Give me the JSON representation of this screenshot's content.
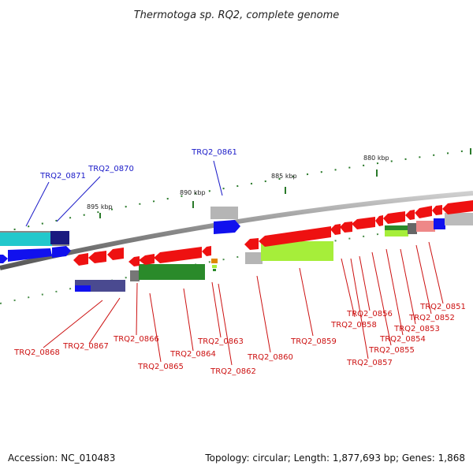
{
  "title": "Thermotoga sp. RQ2, complete genome",
  "footer": {
    "accession": "Accession: NC_010483",
    "summary": "Topology: circular; Length: 1,877,693 bp; Genes: 1,868"
  },
  "scale_ticks": [
    "895 kbp",
    "890 kbp",
    "885 kbp",
    "880 kbp"
  ],
  "colors": {
    "backbone": "#888888",
    "forward_label": "#1a1ac8",
    "reverse_label": "#cc1111",
    "tick": "#2a7a2a",
    "gene_red": "#ee1111",
    "gene_blue": "#1111ee",
    "gene_cyan": "#22c8cc",
    "gene_navy": "#1a1a80",
    "gene_green": "#2a8a2a",
    "gene_lime": "#a6ee3a",
    "gene_purple": "#4a4a90",
    "gene_gray": "#aaaaaa",
    "gene_pink": "#ee8888"
  },
  "genes_top": [
    {
      "label": "TRQ2_0871"
    },
    {
      "label": "TRQ2_0870"
    },
    {
      "label": "TRQ2_0861"
    }
  ],
  "genes_bottom": [
    {
      "label": "TRQ2_0868"
    },
    {
      "label": "TRQ2_0867"
    },
    {
      "label": "TRQ2_0866"
    },
    {
      "label": "TRQ2_0865"
    },
    {
      "label": "TRQ2_0864"
    },
    {
      "label": "TRQ2_0863"
    },
    {
      "label": "TRQ2_0862"
    },
    {
      "label": "TRQ2_0860"
    },
    {
      "label": "TRQ2_0859"
    },
    {
      "label": "TRQ2_0858"
    },
    {
      "label": "TRQ2_0857"
    },
    {
      "label": "TRQ2_0856"
    },
    {
      "label": "TRQ2_0855"
    },
    {
      "label": "TRQ2_0854"
    },
    {
      "label": "TRQ2_0853"
    },
    {
      "label": "TRQ2_0852"
    },
    {
      "label": "TRQ2_0851"
    }
  ]
}
